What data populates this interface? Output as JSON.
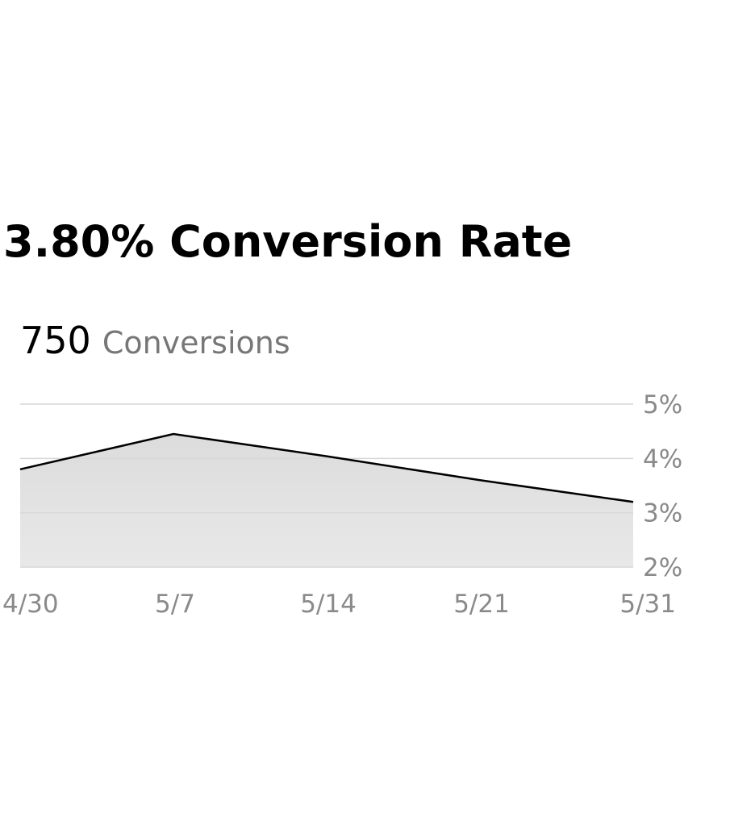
{
  "chart_data": {
    "type": "area",
    "title": "3.80% Conversion Rate",
    "metric": {
      "value": "750",
      "label": "Conversions"
    },
    "categories": [
      "4/30",
      "5/7",
      "5/14",
      "5/21",
      "5/31"
    ],
    "values": [
      3.8,
      4.45,
      4.04,
      3.6,
      3.2
    ],
    "color": "#000000",
    "fill": "#e0e0e0",
    "ylim": [
      2,
      5
    ],
    "yticks": [
      {
        "value": 2,
        "label": "2%"
      },
      {
        "value": 3,
        "label": "3%"
      },
      {
        "value": 4,
        "label": "4%"
      },
      {
        "value": 5,
        "label": "5%"
      }
    ],
    "grid": true
  }
}
